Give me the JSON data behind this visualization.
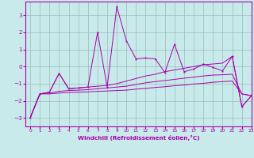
{
  "xlabel": "Windchill (Refroidissement éolien,°C)",
  "xlim": [
    -0.5,
    23
  ],
  "ylim": [
    -3.5,
    3.8
  ],
  "yticks": [
    -3,
    -2,
    -1,
    0,
    1,
    2,
    3
  ],
  "xticks": [
    0,
    1,
    2,
    3,
    4,
    5,
    6,
    7,
    8,
    9,
    10,
    11,
    12,
    13,
    14,
    15,
    16,
    17,
    18,
    19,
    20,
    21,
    22,
    23
  ],
  "bg_color": "#c8eaea",
  "line_color": "#aa00aa",
  "grid_color": "#99bbbb",
  "hours": [
    0,
    1,
    2,
    3,
    4,
    5,
    6,
    7,
    8,
    9,
    10,
    11,
    12,
    13,
    14,
    15,
    16,
    17,
    18,
    19,
    20,
    21,
    22,
    23
  ],
  "line_spiky": [
    -3.0,
    -1.6,
    -1.5,
    -0.4,
    -1.3,
    -1.25,
    -1.2,
    2.0,
    -1.2,
    3.5,
    1.5,
    0.45,
    0.5,
    0.45,
    -0.35,
    1.3,
    -0.3,
    -0.15,
    0.15,
    -0.05,
    -0.25,
    0.6,
    -2.35,
    -1.7
  ],
  "line_upper": [
    -3.0,
    -1.6,
    -1.5,
    -0.4,
    -1.3,
    -1.25,
    -1.2,
    -1.15,
    -1.1,
    -1.0,
    -0.85,
    -0.7,
    -0.55,
    -0.45,
    -0.3,
    -0.2,
    -0.1,
    0.0,
    0.1,
    0.15,
    0.2,
    0.6,
    -2.35,
    -1.7
  ],
  "line_mid": [
    -3.0,
    -1.6,
    -1.55,
    -1.45,
    -1.4,
    -1.38,
    -1.35,
    -1.3,
    -1.25,
    -1.2,
    -1.15,
    -1.05,
    -0.95,
    -0.88,
    -0.82,
    -0.75,
    -0.68,
    -0.62,
    -0.55,
    -0.5,
    -0.48,
    -0.45,
    -1.6,
    -1.7
  ],
  "line_lower": [
    -3.0,
    -1.6,
    -1.6,
    -1.55,
    -1.52,
    -1.5,
    -1.48,
    -1.45,
    -1.43,
    -1.4,
    -1.38,
    -1.32,
    -1.28,
    -1.22,
    -1.18,
    -1.12,
    -1.08,
    -1.02,
    -0.98,
    -0.92,
    -0.88,
    -0.85,
    -1.6,
    -1.7
  ]
}
